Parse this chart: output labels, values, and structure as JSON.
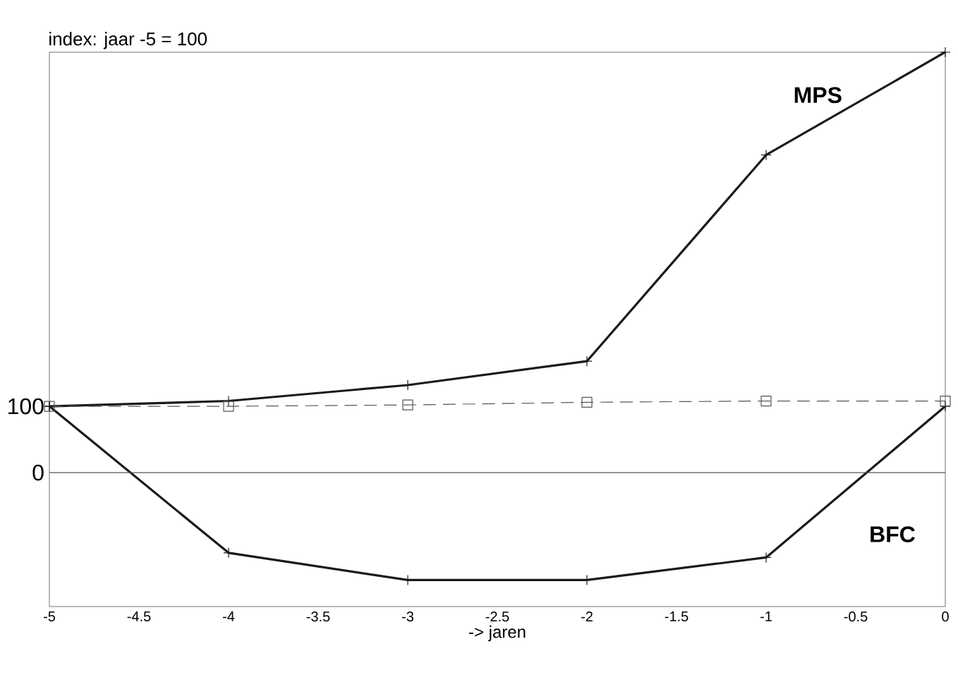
{
  "chart_data": {
    "type": "line",
    "ylabel": "index: jaar -5 = 100",
    "xlabel": "-> jaren",
    "x": [
      -5,
      -4,
      -3,
      -2,
      -1,
      0
    ],
    "series": [
      {
        "name": "MPS",
        "color": "#1a1a1a",
        "marker": "cross",
        "line_style": "solid",
        "values": [
          100,
          108,
          132,
          168,
          479,
          634
        ]
      },
      {
        "name": "BFC",
        "color": "#1a1a1a",
        "marker": "cross",
        "line_style": "solid",
        "values": [
          100,
          -121,
          -162,
          -162,
          -128,
          100
        ]
      },
      {
        "color": "#555555",
        "marker": "square",
        "line_style": "dashed",
        "values": [
          100,
          100,
          102,
          106,
          108,
          108
        ]
      }
    ],
    "xlim": [
      -5,
      0
    ],
    "xticks": [
      -5,
      -4.5,
      -4,
      -3.5,
      -3,
      -2.5,
      -2,
      -1.5,
      -1,
      -0.5,
      0
    ],
    "ylim": [
      -202,
      634
    ],
    "yticks": [
      0,
      100
    ],
    "ref_lines": [
      {
        "axis": "y",
        "value": 0,
        "color": "#555555",
        "line_style": "solid"
      }
    ],
    "grid": false,
    "legend": false
  }
}
